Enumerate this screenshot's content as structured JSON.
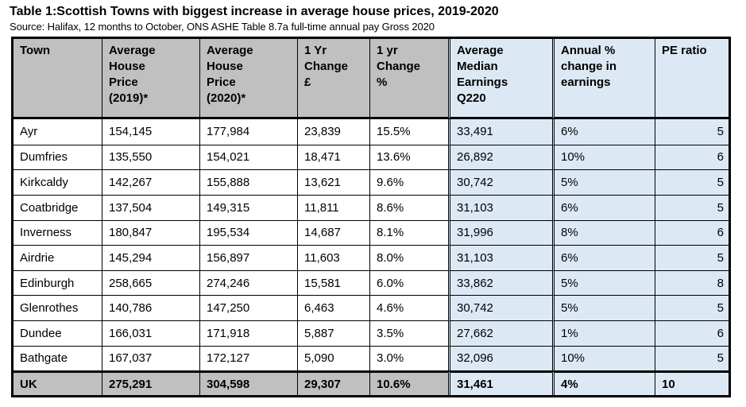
{
  "title": "Table 1:Scottish Towns with biggest increase in average house prices, 2019-2020",
  "source": "Source: Halifax, 12 months to October, ONS ASHE Table 8.7a full-time annual pay Gross 2020",
  "headers": [
    [
      "Town"
    ],
    [
      "Average",
      "House",
      "Price",
      "(2019)*"
    ],
    [
      "Average",
      "House",
      "Price",
      "(2020)*"
    ],
    [
      "1 Yr",
      "Change",
      "£"
    ],
    [
      "1 yr",
      "Change",
      "%"
    ],
    [
      "Average",
      "Median",
      "Earnings",
      "Q220"
    ],
    [
      "Annual %",
      "change in",
      "earnings"
    ],
    [
      "PE ratio"
    ]
  ],
  "rows": [
    [
      "Ayr",
      "154,145",
      "177,984",
      "23,839",
      "15.5%",
      "33,491",
      "6%",
      "5"
    ],
    [
      "Dumfries",
      "135,550",
      "154,021",
      "18,471",
      "13.6%",
      "26,892",
      "10%",
      "6"
    ],
    [
      "Kirkcaldy",
      "142,267",
      "155,888",
      "13,621",
      "9.6%",
      "30,742",
      "5%",
      "5"
    ],
    [
      "Coatbridge",
      "137,504",
      "149,315",
      "11,811",
      "8.6%",
      "31,103",
      "6%",
      "5"
    ],
    [
      "Inverness",
      "180,847",
      "195,534",
      "14,687",
      "8.1%",
      "31,996",
      "8%",
      "6"
    ],
    [
      "Airdrie",
      "145,294",
      "156,897",
      "11,603",
      "8.0%",
      "31,103",
      "6%",
      "5"
    ],
    [
      "Edinburgh",
      "258,665",
      "274,246",
      "15,581",
      "6.0%",
      "33,862",
      "5%",
      "8"
    ],
    [
      "Glenrothes",
      "140,786",
      "147,250",
      "6,463",
      "4.6%",
      "30,742",
      "5%",
      "5"
    ],
    [
      "Dundee",
      "166,031",
      "171,918",
      "5,887",
      "3.5%",
      "27,662",
      "1%",
      "6"
    ],
    [
      "Bathgate",
      "167,037",
      "172,127",
      "5,090",
      "3.0%",
      "32,096",
      "10%",
      "5"
    ]
  ],
  "total_row": [
    "UK",
    "275,291",
    "304,598",
    "29,307",
    "10.6%",
    "31,461",
    "4%",
    "10"
  ],
  "colors": {
    "header_gray": "#c0c0c0",
    "earnings_blue": "#dce9f5"
  }
}
